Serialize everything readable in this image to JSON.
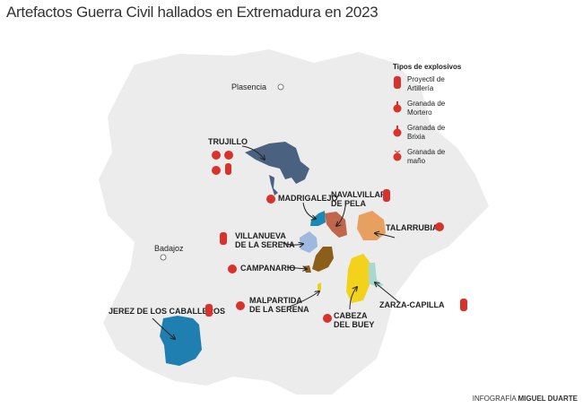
{
  "title": "Artefactos Guerra Civil hallados en Extremadura en 2023",
  "legend": {
    "heading": "Tipos de explosivos",
    "items": [
      {
        "label1": "Proyectil de",
        "label2": "Artillería",
        "icon": "artillery-shell-icon"
      },
      {
        "label1": "Granada de",
        "label2": "Mortero",
        "icon": "mortar-grenade-icon"
      },
      {
        "label1": "Granada de",
        "label2": "Brixia",
        "icon": "brixia-grenade-icon"
      },
      {
        "label1": "Granada de",
        "label2": "maño",
        "icon": "hand-grenade-icon"
      }
    ],
    "icon_color": "#d9312b"
  },
  "cities": {
    "plasencia": "Plasencia",
    "badajoz": "Badajoz"
  },
  "municipalities": [
    {
      "name": "TRUJILLO",
      "color": "#4a6280"
    },
    {
      "name": "MADRIGALEJO",
      "color": "#1a87b5"
    },
    {
      "name1": "NAVALVILLAR",
      "name2": "DE PELA",
      "color": "#c0664b"
    },
    {
      "name": "TALARRUBIAS",
      "color": "#e8a060"
    },
    {
      "name1": "VILLANUEVA",
      "name2": "DE LA SERENA",
      "color": "#9fb8e0"
    },
    {
      "name": "CAMPANARIO",
      "color": "#8b5e1a"
    },
    {
      "name1": "MALPARTIDA",
      "name2": "DE LA SERENA",
      "color": "#e8d21a"
    },
    {
      "name1": "CABEZA",
      "name2": "DEL BUEY",
      "color": "#f2d21a"
    },
    {
      "name": "ZARZA-CAPILLA",
      "color": "#a8d8d0"
    },
    {
      "name": "JEREZ  DE LOS CABALLEROS",
      "color": "#1e7fb0"
    }
  ],
  "credit": {
    "prefix": "INFOGRAFÍA",
    "author": "MIGUEL DUARTE"
  }
}
